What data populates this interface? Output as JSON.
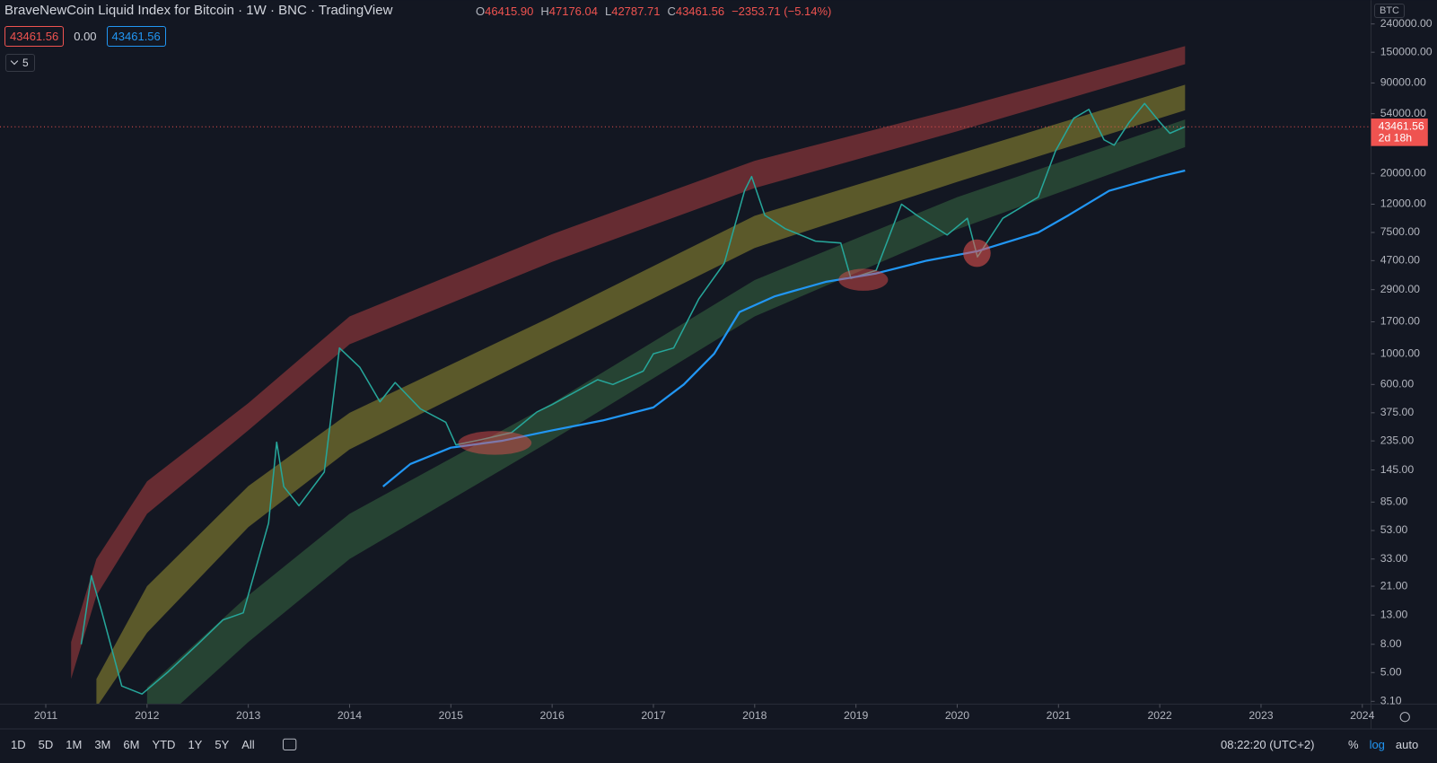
{
  "header": {
    "title": "BraveNewCoin Liquid Index for Bitcoin · 1W · BNC · TradingView",
    "ohlc": [
      {
        "key": "O",
        "value": "46415.90"
      },
      {
        "key": "H",
        "value": "47176.04"
      },
      {
        "key": "L",
        "value": "42787.71"
      },
      {
        "key": "C",
        "value": "43461.56"
      }
    ],
    "change": "−2353.71 (−5.14%)"
  },
  "indicator": {
    "values": [
      "43461.56",
      "0.00",
      "43461.56"
    ],
    "collapsed_count": "5"
  },
  "toolbar": {
    "currency": "BTC",
    "ranges": [
      "1D",
      "5D",
      "1M",
      "3M",
      "6M",
      "YTD",
      "1Y",
      "5Y",
      "All"
    ],
    "time": "08:22:20 (UTC+2)",
    "options": [
      "%",
      "log",
      "auto"
    ]
  },
  "chart_data": {
    "type": "line",
    "log_scale": true,
    "grid": false,
    "xlim": [
      2010.548,
      2024.086
    ],
    "xticks": [
      2011,
      2012,
      2013,
      2014,
      2015,
      2016,
      2017,
      2018,
      2019,
      2020,
      2021,
      2022,
      2023,
      2024
    ],
    "ylim": [
      2.96,
      356000
    ],
    "yticks": [
      {
        "value": 3.1,
        "label": "3.10"
      },
      {
        "value": 5,
        "label": "5.00"
      },
      {
        "value": 8,
        "label": "8.00"
      },
      {
        "value": 13,
        "label": "13.00"
      },
      {
        "value": 21,
        "label": "21.00"
      },
      {
        "value": 33,
        "label": "33.00"
      },
      {
        "value": 53,
        "label": "53.00"
      },
      {
        "value": 85,
        "label": "85.00"
      },
      {
        "value": 145,
        "label": "145.00"
      },
      {
        "value": 235,
        "label": "235.00"
      },
      {
        "value": 375,
        "label": "375.00"
      },
      {
        "value": 600,
        "label": "600.00"
      },
      {
        "value": 1000,
        "label": "1000.00"
      },
      {
        "value": 1700,
        "label": "1700.00"
      },
      {
        "value": 2900,
        "label": "2900.00"
      },
      {
        "value": 4700,
        "label": "4700.00"
      },
      {
        "value": 7500,
        "label": "7500.00"
      },
      {
        "value": 12000,
        "label": "12000.00"
      },
      {
        "value": 20000,
        "label": "20000.00"
      },
      {
        "value": 54000,
        "label": "54000.00"
      },
      {
        "value": 90000,
        "label": "90000.00"
      },
      {
        "value": 150000,
        "label": "150000.00"
      },
      {
        "value": 240000,
        "label": "240000.00"
      }
    ],
    "bands": [
      {
        "color": "rgba(205,70,70,0.45)",
        "x": [
          2011.25,
          2011.5,
          2012,
          2013,
          2014,
          2016,
          2018,
          2020,
          2022.25
        ],
        "upper": [
          8.3,
          33,
          120,
          440,
          1860,
          7300,
          24700,
          59000,
          166000
        ],
        "lower": [
          4.5,
          18,
          70,
          280,
          1170,
          4600,
          15700,
          40300,
          123000
        ]
      },
      {
        "color": "rgba(190,180,55,0.42)",
        "x": [
          2011.25,
          2011.5,
          2012,
          2013,
          2014,
          2016,
          2018,
          2020,
          2022.25
        ],
        "upper": [
          null,
          4.5,
          21,
          111,
          375,
          1860,
          9900,
          27500,
          87500
        ],
        "lower": [
          null,
          2.8,
          9.7,
          56,
          204,
          1090,
          5800,
          17400,
          57200
        ]
      },
      {
        "color": "rgba(70,140,80,0.38)",
        "x": [
          2011.25,
          2011.5,
          2012,
          2013,
          2014,
          2016,
          2018,
          2020,
          2022.25
        ],
        "upper": [
          null,
          null,
          3.9,
          18,
          70,
          440,
          3400,
          13500,
          49000
        ],
        "lower": [
          null,
          null,
          1.8,
          8.3,
          33,
          238,
          1860,
          7900,
          31000
        ]
      }
    ],
    "series": [
      {
        "color": "#26a69a",
        "x": [
          2011.35,
          2011.45,
          2011.55,
          2011.75,
          2011.95,
          2012.2,
          2012.5,
          2012.75,
          2012.95,
          2013.2,
          2013.28,
          2013.35,
          2013.5,
          2013.75,
          2013.9,
          2014.1,
          2014.3,
          2014.45,
          2014.7,
          2014.95,
          2015.05,
          2015.3,
          2015.6,
          2015.85,
          2016.0,
          2016.45,
          2016.6,
          2016.9,
          2017.0,
          2017.2,
          2017.45,
          2017.7,
          2017.9,
          2017.97,
          2018.1,
          2018.3,
          2018.6,
          2018.85,
          2018.95,
          2019.2,
          2019.45,
          2019.6,
          2019.9,
          2020.1,
          2020.2,
          2020.45,
          2020.8,
          2020.97,
          2021.15,
          2021.3,
          2021.45,
          2021.55,
          2021.7,
          2021.85,
          2022.0,
          2022.1,
          2022.25
        ],
        "values": [
          8,
          25,
          14,
          4,
          3.5,
          5,
          8,
          12,
          13.5,
          60,
          230,
          110,
          80,
          140,
          1100,
          800,
          450,
          620,
          400,
          320,
          220,
          240,
          270,
          380,
          430,
          650,
          600,
          750,
          1000,
          1100,
          2500,
          4500,
          15000,
          19000,
          10000,
          8000,
          6500,
          6300,
          3500,
          4000,
          12000,
          10000,
          7200,
          9500,
          5000,
          9500,
          13500,
          29000,
          50000,
          58000,
          35000,
          32000,
          47000,
          64000,
          47000,
          39000,
          43461.56
        ]
      },
      {
        "color": "#2196f3",
        "x": [
          2014.33,
          2014.6,
          2015.0,
          2015.5,
          2016.0,
          2016.5,
          2017.0,
          2017.3,
          2017.6,
          2017.85,
          2018.2,
          2018.7,
          2019.2,
          2019.7,
          2020.2,
          2020.8,
          2021.1,
          2021.5,
          2022.0,
          2022.25
        ],
        "values": [
          110,
          160,
          210,
          235,
          280,
          330,
          410,
          600,
          1000,
          2000,
          2600,
          3300,
          3800,
          4700,
          5500,
          7500,
          10000,
          15000,
          19000,
          21000
        ]
      }
    ],
    "last_price": {
      "value": 43461.56,
      "label": "43461.56"
    },
    "countdown": "2d 18h"
  }
}
